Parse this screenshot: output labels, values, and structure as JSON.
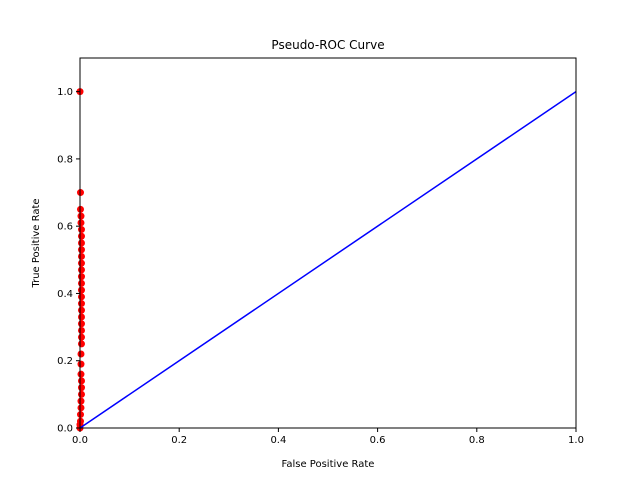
{
  "chart_data": {
    "type": "scatter",
    "title": "Pseudo-ROC Curve",
    "xlabel": "False Positive Rate",
    "ylabel": "True Positive Rate",
    "xlim": [
      0,
      1.0
    ],
    "ylim": [
      0,
      1.1
    ],
    "xticks": [
      "0.0",
      "0.2",
      "0.4",
      "0.6",
      "0.8",
      "1.0"
    ],
    "yticks": [
      "0.0",
      "0.2",
      "0.4",
      "0.6",
      "0.8",
      "1.0"
    ],
    "grid": false,
    "colors": {
      "points": "#ff0000",
      "diagonal": "#0000ff",
      "axes": "#000000"
    },
    "series": [
      {
        "kind": "scatter",
        "color": "#ff0000",
        "points": [
          [
            0.0,
            0.0
          ],
          [
            0.0,
            0.01
          ],
          [
            0.001,
            0.02
          ],
          [
            0.001,
            0.04
          ],
          [
            0.002,
            0.06
          ],
          [
            0.002,
            0.08
          ],
          [
            0.003,
            0.1
          ],
          [
            0.003,
            0.12
          ],
          [
            0.003,
            0.14
          ],
          [
            0.002,
            0.16
          ],
          [
            0.002,
            0.19
          ],
          [
            0.002,
            0.22
          ],
          [
            0.003,
            0.25
          ],
          [
            0.003,
            0.27
          ],
          [
            0.003,
            0.29
          ],
          [
            0.003,
            0.31
          ],
          [
            0.003,
            0.33
          ],
          [
            0.003,
            0.35
          ],
          [
            0.003,
            0.37
          ],
          [
            0.003,
            0.39
          ],
          [
            0.003,
            0.41
          ],
          [
            0.003,
            0.43
          ],
          [
            0.003,
            0.45
          ],
          [
            0.003,
            0.47
          ],
          [
            0.003,
            0.49
          ],
          [
            0.003,
            0.51
          ],
          [
            0.003,
            0.53
          ],
          [
            0.003,
            0.55
          ],
          [
            0.003,
            0.57
          ],
          [
            0.003,
            0.59
          ],
          [
            0.002,
            0.61
          ],
          [
            0.002,
            0.63
          ],
          [
            0.001,
            0.65
          ],
          [
            0.001,
            0.7
          ],
          [
            0.0,
            1.0
          ]
        ]
      },
      {
        "kind": "line",
        "color": "#0000ff",
        "points": [
          [
            0.0,
            0.0
          ],
          [
            1.0,
            1.0
          ]
        ]
      }
    ]
  }
}
